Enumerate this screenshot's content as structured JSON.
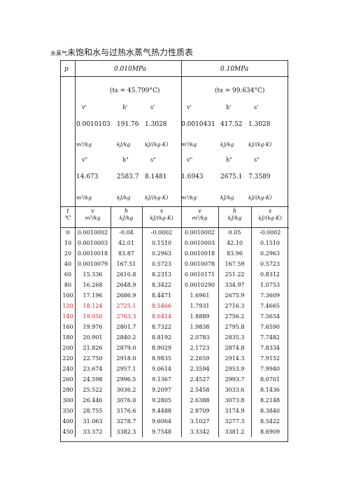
{
  "title": {
    "prefix": "水蒸气",
    "main": "未饱和水与过热水蒸气热力性质表"
  },
  "header": {
    "p_label": "p",
    "pressures": [
      "0.010MPa",
      "0.10MPa"
    ],
    "ts": [
      "(ts = 45.799°C)",
      "(ts = 99.634°C)"
    ],
    "sat_liquid_labels": [
      "v'",
      "h'",
      "s'"
    ],
    "sat_liquid_values": [
      [
        "0.0010103",
        "191.76",
        "1.3028"
      ],
      [
        "0.0010431",
        "417.52",
        "1.3028"
      ]
    ],
    "sat_vapor_labels": [
      "v\"",
      "h\"",
      "s\""
    ],
    "sat_vapor_values": [
      [
        "14.673",
        "2583.7",
        "8.1481"
      ],
      [
        "1.6943",
        "2675.1",
        "7.3589"
      ]
    ],
    "units": [
      "m³/kg",
      "kJ/kg",
      "kJ/(kg·K)"
    ]
  },
  "colhead": {
    "t": "t",
    "t_unit": "℃",
    "v": "v",
    "v_unit": "m³/kg",
    "h": "h",
    "h_unit": "kJ/kg",
    "s": "s",
    "s_unit": "kJ/(kg·K)"
  },
  "colors": {
    "highlight": "#d32121"
  },
  "rows": [
    {
      "t": "0",
      "v1": "0.0010002",
      "h1": "-0.04",
      "s1": "-0.0002",
      "v2": "0.0010002",
      "h2": "0.05",
      "s2": "-0.0002",
      "hl": false
    },
    {
      "t": "10",
      "v1": "0.0010003",
      "h1": "42.01",
      "s1": "0.1510",
      "v2": "0.0010003",
      "h2": "42.10",
      "s2": "0.1510",
      "hl": false
    },
    {
      "t": "20",
      "v1": "0.0010018",
      "h1": "83.87",
      "s1": "0.2963",
      "v2": "0.0010018",
      "h2": "83.96",
      "s2": "0.2963",
      "hl": false
    },
    {
      "t": "40",
      "v1": "0.0010079",
      "h1": "167.51",
      "s1": "0.5723",
      "v2": "0.0010078",
      "h2": "167.59",
      "s2": "0.5723",
      "hl": false
    },
    {
      "t": "60",
      "v1": "15.336",
      "h1": "2610.8",
      "s1": "8.2313",
      "v2": "0.0010171",
      "h2": "251.22",
      "s2": "0.8312",
      "hl": false
    },
    {
      "t": "80",
      "v1": "16.268",
      "h1": "2648.9",
      "s1": "8.3422",
      "v2": "0.0010290",
      "h2": "334.97",
      "s2": "1.0753",
      "hl": false
    },
    {
      "t": "100",
      "v1": "17.196",
      "h1": "2686.9",
      "s1": "8.4471",
      "v2": "1.6961",
      "h2": "2675.9",
      "s2": "7.3609",
      "hl": false
    },
    {
      "t": "120",
      "v1": "18.124",
      "h1": "2725.1",
      "s1": "8.5466",
      "v2": "1.7931",
      "h2": "2716.3",
      "s2": "7.4665",
      "hl": true
    },
    {
      "t": "140",
      "v1": "19.050",
      "h1": "2763.3",
      "s1": "8.6414",
      "v2": "1.8889",
      "h2": "2756.2",
      "s2": "7.5654",
      "hl": true
    },
    {
      "t": "160",
      "v1": "19.976",
      "h1": "2801.7",
      "s1": "8.7322",
      "v2": "1.9838",
      "h2": "2795.8",
      "s2": "7.6590",
      "hl": false
    },
    {
      "t": "180",
      "v1": "20.901",
      "h1": "2840.2",
      "s1": "8.8192",
      "v2": "2.0783",
      "h2": "2835.3",
      "s2": "7.7482",
      "hl": false
    },
    {
      "t": "200",
      "v1": "21.826",
      "h1": "2879.0",
      "s1": "8.9029",
      "v2": "2.1723",
      "h2": "2874.8",
      "s2": "7.8334",
      "hl": false
    },
    {
      "t": "220",
      "v1": "22.750",
      "h1": "2918.0",
      "s1": "8.9835",
      "v2": "2.2659",
      "h2": "2914.3",
      "s2": "7.9152",
      "hl": false
    },
    {
      "t": "240",
      "v1": "23.674",
      "h1": "2957.1",
      "s1": "9.0614",
      "v2": "2.3594",
      "h2": "2953.9",
      "s2": "7.9940",
      "hl": false
    },
    {
      "t": "260",
      "v1": "24.598",
      "h1": "2996.5",
      "s1": "9.1367",
      "v2": "2.4527",
      "h2": "2993.7",
      "s2": "8.0701",
      "hl": false
    },
    {
      "t": "280",
      "v1": "25.522",
      "h1": "3036.2",
      "s1": "9.2097",
      "v2": "2.5458",
      "h2": "3033.6",
      "s2": "8.1436",
      "hl": false
    },
    {
      "t": "300",
      "v1": "26.446",
      "h1": "3076.0",
      "s1": "9.2805",
      "v2": "2.6388",
      "h2": "3073.8",
      "s2": "8.2148",
      "hl": false
    },
    {
      "t": "350",
      "v1": "28.755",
      "h1": "3176.6",
      "s1": "9.4488",
      "v2": "2.8709",
      "h2": "3174.9",
      "s2": "8.3840",
      "hl": false
    },
    {
      "t": "400",
      "v1": "31.063",
      "h1": "3278.7",
      "s1": "9.6064",
      "v2": "3.1027",
      "h2": "3277.3",
      "s2": "8.5422",
      "hl": false
    },
    {
      "t": "450",
      "v1": "33.372",
      "h1": "3382.3",
      "s1": "9.7548",
      "v2": "3.3342",
      "h2": "3381.2",
      "s2": "8.6909",
      "hl": false
    }
  ]
}
